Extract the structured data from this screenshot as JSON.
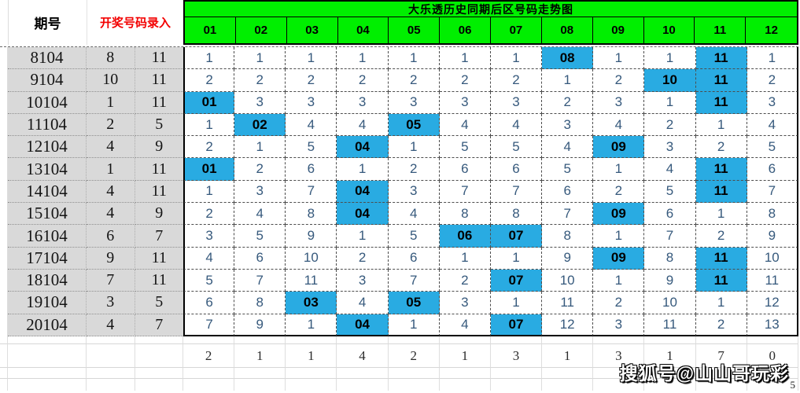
{
  "labels": {
    "issue": "期号",
    "entry": "开奖号码录入"
  },
  "footer": {
    "watermark": "搜狐号@山山哥玩彩",
    "page": "5"
  },
  "colors": {
    "header_green": "#00ef00",
    "highlight_blue": "#29abe2",
    "trend_text": "#36597c",
    "entry_label_red": "#f30000",
    "left_column_gray": "#d9d9d9"
  },
  "chart_data": {
    "type": "table",
    "title": "大乐透历史同期后区号码走势图",
    "columns": [
      "01",
      "02",
      "03",
      "04",
      "05",
      "06",
      "07",
      "08",
      "09",
      "10",
      "11",
      "12"
    ],
    "rows": [
      {
        "issue": "8104",
        "nums": [
          "8",
          "11"
        ],
        "cells": [
          [
            "1",
            0
          ],
          [
            "1",
            0
          ],
          [
            "1",
            0
          ],
          [
            "1",
            0
          ],
          [
            "1",
            0
          ],
          [
            "1",
            0
          ],
          [
            "1",
            0
          ],
          [
            "08",
            1
          ],
          [
            "1",
            0
          ],
          [
            "1",
            0
          ],
          [
            "11",
            1
          ],
          [
            "1",
            0
          ]
        ]
      },
      {
        "issue": "9104",
        "nums": [
          "10",
          "11"
        ],
        "cells": [
          [
            "2",
            0
          ],
          [
            "2",
            0
          ],
          [
            "2",
            0
          ],
          [
            "2",
            0
          ],
          [
            "2",
            0
          ],
          [
            "2",
            0
          ],
          [
            "2",
            0
          ],
          [
            "1",
            0
          ],
          [
            "2",
            0
          ],
          [
            "10",
            1
          ],
          [
            "11",
            1
          ],
          [
            "2",
            0
          ]
        ]
      },
      {
        "issue": "10104",
        "nums": [
          "1",
          "11"
        ],
        "cells": [
          [
            "01",
            1
          ],
          [
            "3",
            0
          ],
          [
            "3",
            0
          ],
          [
            "3",
            0
          ],
          [
            "3",
            0
          ],
          [
            "3",
            0
          ],
          [
            "3",
            0
          ],
          [
            "2",
            0
          ],
          [
            "3",
            0
          ],
          [
            "1",
            0
          ],
          [
            "11",
            1
          ],
          [
            "3",
            0
          ]
        ]
      },
      {
        "issue": "11104",
        "nums": [
          "2",
          "5"
        ],
        "cells": [
          [
            "1",
            0
          ],
          [
            "02",
            1
          ],
          [
            "4",
            0
          ],
          [
            "4",
            0
          ],
          [
            "05",
            1
          ],
          [
            "4",
            0
          ],
          [
            "4",
            0
          ],
          [
            "3",
            0
          ],
          [
            "4",
            0
          ],
          [
            "2",
            0
          ],
          [
            "1",
            0
          ],
          [
            "4",
            0
          ]
        ]
      },
      {
        "issue": "12104",
        "nums": [
          "4",
          "9"
        ],
        "cells": [
          [
            "2",
            0
          ],
          [
            "1",
            0
          ],
          [
            "5",
            0
          ],
          [
            "04",
            1
          ],
          [
            "1",
            0
          ],
          [
            "5",
            0
          ],
          [
            "5",
            0
          ],
          [
            "4",
            0
          ],
          [
            "09",
            1
          ],
          [
            "3",
            0
          ],
          [
            "2",
            0
          ],
          [
            "5",
            0
          ]
        ]
      },
      {
        "issue": "13104",
        "nums": [
          "1",
          "11"
        ],
        "cells": [
          [
            "01",
            1
          ],
          [
            "2",
            0
          ],
          [
            "6",
            0
          ],
          [
            "1",
            0
          ],
          [
            "2",
            0
          ],
          [
            "6",
            0
          ],
          [
            "6",
            0
          ],
          [
            "5",
            0
          ],
          [
            "1",
            0
          ],
          [
            "4",
            0
          ],
          [
            "11",
            1
          ],
          [
            "6",
            0
          ]
        ]
      },
      {
        "issue": "14104",
        "nums": [
          "4",
          "11"
        ],
        "cells": [
          [
            "1",
            0
          ],
          [
            "3",
            0
          ],
          [
            "7",
            0
          ],
          [
            "04",
            1
          ],
          [
            "3",
            0
          ],
          [
            "7",
            0
          ],
          [
            "7",
            0
          ],
          [
            "6",
            0
          ],
          [
            "2",
            0
          ],
          [
            "5",
            0
          ],
          [
            "11",
            1
          ],
          [
            "7",
            0
          ]
        ]
      },
      {
        "issue": "15104",
        "nums": [
          "4",
          "9"
        ],
        "cells": [
          [
            "2",
            0
          ],
          [
            "4",
            0
          ],
          [
            "8",
            0
          ],
          [
            "04",
            1
          ],
          [
            "4",
            0
          ],
          [
            "8",
            0
          ],
          [
            "8",
            0
          ],
          [
            "7",
            0
          ],
          [
            "09",
            1
          ],
          [
            "6",
            0
          ],
          [
            "1",
            0
          ],
          [
            "8",
            0
          ]
        ]
      },
      {
        "issue": "16104",
        "nums": [
          "6",
          "7"
        ],
        "cells": [
          [
            "3",
            0
          ],
          [
            "5",
            0
          ],
          [
            "9",
            0
          ],
          [
            "1",
            0
          ],
          [
            "5",
            0
          ],
          [
            "06",
            1
          ],
          [
            "07",
            1
          ],
          [
            "8",
            0
          ],
          [
            "1",
            0
          ],
          [
            "7",
            0
          ],
          [
            "2",
            0
          ],
          [
            "9",
            0
          ]
        ]
      },
      {
        "issue": "17104",
        "nums": [
          "9",
          "11"
        ],
        "cells": [
          [
            "4",
            0
          ],
          [
            "6",
            0
          ],
          [
            "10",
            0
          ],
          [
            "2",
            0
          ],
          [
            "6",
            0
          ],
          [
            "1",
            0
          ],
          [
            "1",
            0
          ],
          [
            "9",
            0
          ],
          [
            "09",
            1
          ],
          [
            "8",
            0
          ],
          [
            "11",
            1
          ],
          [
            "10",
            0
          ]
        ]
      },
      {
        "issue": "18104",
        "nums": [
          "7",
          "11"
        ],
        "cells": [
          [
            "5",
            0
          ],
          [
            "7",
            0
          ],
          [
            "11",
            0
          ],
          [
            "3",
            0
          ],
          [
            "7",
            0
          ],
          [
            "2",
            0
          ],
          [
            "07",
            1
          ],
          [
            "10",
            0
          ],
          [
            "1",
            0
          ],
          [
            "9",
            0
          ],
          [
            "11",
            1
          ],
          [
            "11",
            0
          ]
        ]
      },
      {
        "issue": "19104",
        "nums": [
          "3",
          "5"
        ],
        "cells": [
          [
            "6",
            0
          ],
          [
            "8",
            0
          ],
          [
            "03",
            1
          ],
          [
            "4",
            0
          ],
          [
            "05",
            1
          ],
          [
            "3",
            0
          ],
          [
            "1",
            0
          ],
          [
            "11",
            0
          ],
          [
            "2",
            0
          ],
          [
            "10",
            0
          ],
          [
            "1",
            0
          ],
          [
            "12",
            0
          ]
        ]
      },
      {
        "issue": "20104",
        "nums": [
          "4",
          "7"
        ],
        "cells": [
          [
            "7",
            0
          ],
          [
            "9",
            0
          ],
          [
            "1",
            0
          ],
          [
            "04",
            1
          ],
          [
            "1",
            0
          ],
          [
            "4",
            0
          ],
          [
            "07",
            1
          ],
          [
            "12",
            0
          ],
          [
            "3",
            0
          ],
          [
            "11",
            0
          ],
          [
            "2",
            0
          ],
          [
            "13",
            0
          ]
        ]
      }
    ],
    "counts": [
      "2",
      "1",
      "1",
      "4",
      "2",
      "1",
      "3",
      "1",
      "3",
      "1",
      "7",
      "0"
    ]
  }
}
